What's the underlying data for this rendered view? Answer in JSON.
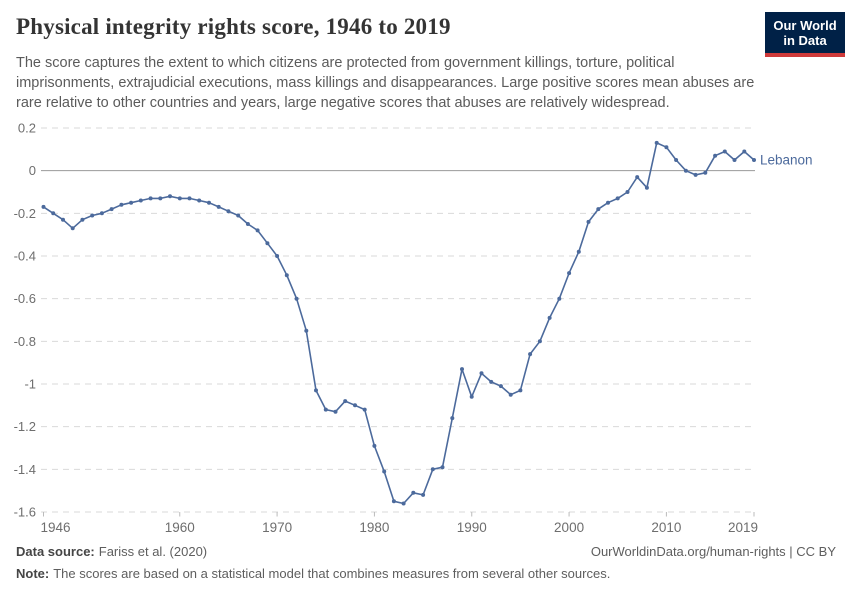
{
  "header": {
    "title": "Physical integrity rights score, 1946 to 2019",
    "subtitle": "The score captures the extent to which citizens are protected from government killings, torture, political imprisonments, extrajudicial executions, mass killings and disappearances. Large positive scores mean abuses are rare relative to other countries and years, large negative scores that abuses are relatively widespread."
  },
  "logo": {
    "line1": "Our World",
    "line2": "in Data",
    "bg_color": "#002147",
    "stripe_color": "#cf3a3a"
  },
  "chart_data": {
    "type": "line",
    "title": "Physical integrity rights score, 1946 to 2019",
    "x": [
      1946,
      1947,
      1948,
      1949,
      1950,
      1951,
      1952,
      1953,
      1954,
      1955,
      1956,
      1957,
      1958,
      1959,
      1960,
      1961,
      1962,
      1963,
      1964,
      1965,
      1966,
      1967,
      1968,
      1969,
      1970,
      1971,
      1972,
      1973,
      1974,
      1975,
      1976,
      1977,
      1978,
      1979,
      1980,
      1981,
      1982,
      1983,
      1984,
      1985,
      1986,
      1987,
      1988,
      1989,
      1990,
      1991,
      1992,
      1993,
      1994,
      1995,
      1996,
      1997,
      1998,
      1999,
      2000,
      2001,
      2002,
      2003,
      2004,
      2005,
      2006,
      2007,
      2008,
      2009,
      2010,
      2011,
      2012,
      2013,
      2014,
      2015,
      2016,
      2017,
      2018,
      2019
    ],
    "series": [
      {
        "name": "Lebanon",
        "color": "#4c6a9c",
        "values": [
          -0.17,
          -0.2,
          -0.23,
          -0.27,
          -0.23,
          -0.21,
          -0.2,
          -0.18,
          -0.16,
          -0.15,
          -0.14,
          -0.13,
          -0.13,
          -0.12,
          -0.13,
          -0.13,
          -0.14,
          -0.15,
          -0.17,
          -0.19,
          -0.21,
          -0.25,
          -0.28,
          -0.34,
          -0.4,
          -0.49,
          -0.6,
          -0.75,
          -1.03,
          -1.12,
          -1.13,
          -1.08,
          -1.1,
          -1.12,
          -1.29,
          -1.41,
          -1.55,
          -1.56,
          -1.51,
          -1.52,
          -1.4,
          -1.39,
          -1.16,
          -0.93,
          -1.06,
          -0.95,
          -0.99,
          -1.01,
          -1.05,
          -1.03,
          -0.86,
          -0.8,
          -0.69,
          -0.6,
          -0.48,
          -0.38,
          -0.24,
          -0.18,
          -0.15,
          -0.13,
          -0.1,
          -0.03,
          -0.08,
          0.13,
          0.11,
          0.05,
          0.0,
          -0.02,
          -0.01,
          0.07,
          0.09,
          0.05,
          0.09,
          0.05
        ]
      }
    ],
    "xlabel": "",
    "ylabel": "",
    "xlim": [
      1946,
      2019
    ],
    "ylim": [
      -1.6,
      0.2
    ],
    "y_ticks": [
      "0.2",
      "0",
      "-0.2",
      "-0.4",
      "-0.6",
      "-0.8",
      "-1",
      "-1.2",
      "-1.4",
      "-1.6"
    ],
    "x_ticks": [
      "1946",
      "1960",
      "1970",
      "1980",
      "1990",
      "2000",
      "2010",
      "2019"
    ],
    "grid": "horizontal dashed gridlines, solid line at zero",
    "legend": "series label at end of line",
    "colors": {
      "line": "#4c6a9c",
      "gridline": "#dadada",
      "zero_line": "#999999",
      "tick_label": "#6e6e6e"
    }
  },
  "footer": {
    "source_label": "Data source:",
    "source_value": "Fariss et al. (2020)",
    "attribution": "OurWorldinData.org/human-rights | CC BY",
    "note_label": "Note:",
    "note_text": "The scores are based on a statistical model that combines measures from several other sources."
  }
}
